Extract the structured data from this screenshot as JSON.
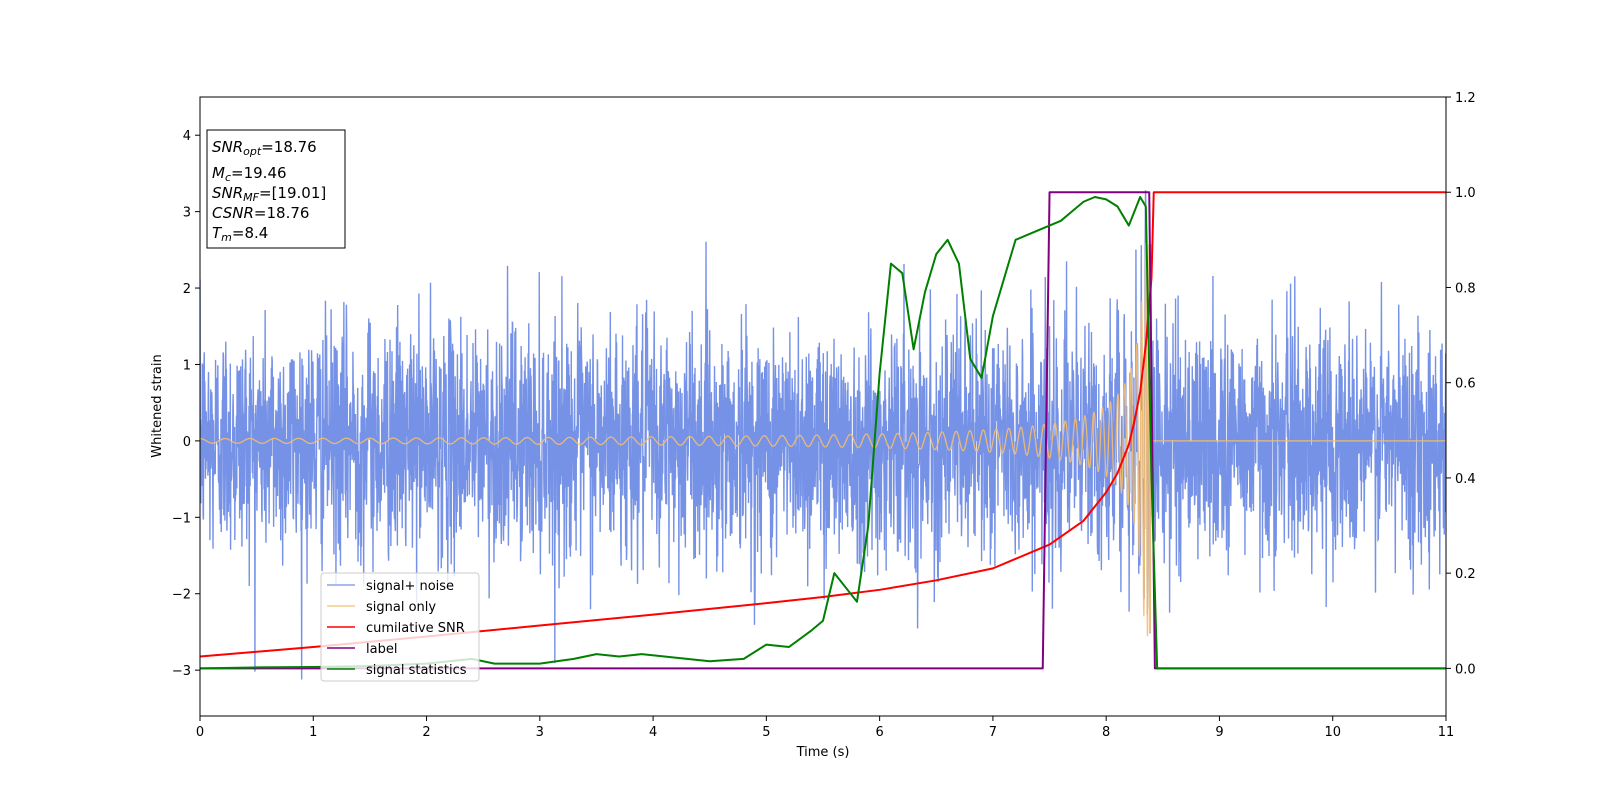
{
  "chart_data": {
    "type": "line",
    "xlabel": "Time (s)",
    "ylabel": "Whitened strain",
    "xlim": [
      0,
      11
    ],
    "ylim_left": [
      -3.6,
      4.5
    ],
    "ylim_right": [
      -0.1,
      1.2
    ],
    "x_ticks": [
      "0",
      "1",
      "2",
      "3",
      "4",
      "5",
      "6",
      "7",
      "8",
      "9",
      "10",
      "11"
    ],
    "y_ticks_left": [
      "−3",
      "−2",
      "−1",
      "0",
      "1",
      "2",
      "3",
      "4"
    ],
    "y_ticks_right": [
      "0.0",
      "0.2",
      "0.4",
      "0.6",
      "0.8",
      "1.0",
      "1.2"
    ],
    "grid": false,
    "legend_position": "lower-left",
    "annotation": {
      "lines": [
        {
          "main": "SNR",
          "sub": "opt",
          "rest": "=18.76"
        },
        {
          "main": "M",
          "sub": "c",
          "rest": "=19.46"
        },
        {
          "main": "SNR",
          "sub": "MF",
          "rest": "=[19.01]"
        },
        {
          "main": "CSNR",
          "sub": "",
          "rest": "=18.76"
        },
        {
          "main": "T",
          "sub": "m",
          "rest": "=8.4"
        }
      ]
    },
    "series": [
      {
        "name": "signal+ noise",
        "axis": "left",
        "color": "#6F8CE5",
        "description_of_values": "noise envelope approx ±1.5 with spikes to ±3",
        "noise_sigma": 0.75
      },
      {
        "name": "signal only",
        "axis": "left",
        "color": "#F5BE6E",
        "chirp_merger_time": 8.4,
        "amplitude_at_start": 0.03,
        "amplitude_at_merger": 2.6
      },
      {
        "name": "cumilative SNR",
        "axis": "right",
        "color": "#FF0000",
        "x": [
          0,
          1,
          2,
          3,
          4,
          5,
          5.5,
          6,
          6.5,
          7,
          7.5,
          7.8,
          8.0,
          8.1,
          8.2,
          8.25,
          8.3,
          8.35,
          8.4,
          8.42,
          11
        ],
        "y": [
          0.025,
          0.045,
          0.067,
          0.09,
          0.113,
          0.137,
          0.15,
          0.165,
          0.185,
          0.21,
          0.26,
          0.31,
          0.37,
          0.41,
          0.47,
          0.52,
          0.58,
          0.68,
          0.82,
          1.0,
          1.0
        ]
      },
      {
        "name": "label",
        "axis": "right",
        "color": "#800080",
        "x": [
          0,
          7.44,
          7.5,
          8.38,
          8.43,
          11
        ],
        "y": [
          0.0,
          0.0,
          1.0,
          1.0,
          0.0,
          0.0
        ]
      },
      {
        "name": "signal statistics",
        "axis": "right",
        "color": "#008000",
        "x": [
          0,
          0.5,
          1,
          1.5,
          2,
          2.4,
          2.6,
          3,
          3.3,
          3.5,
          3.7,
          3.9,
          4.1,
          4.3,
          4.5,
          4.8,
          5.0,
          5.2,
          5.4,
          5.5,
          5.6,
          5.7,
          5.8,
          5.9,
          6.0,
          6.1,
          6.2,
          6.3,
          6.4,
          6.5,
          6.6,
          6.7,
          6.8,
          6.9,
          7.0,
          7.1,
          7.2,
          7.3,
          7.4,
          7.5,
          7.6,
          7.7,
          7.8,
          7.9,
          8.0,
          8.1,
          8.2,
          8.3,
          8.35,
          8.4,
          8.45,
          11
        ],
        "y": [
          0.0,
          0.002,
          0.003,
          0.005,
          0.01,
          0.02,
          0.01,
          0.01,
          0.02,
          0.03,
          0.025,
          0.03,
          0.025,
          0.02,
          0.015,
          0.02,
          0.05,
          0.045,
          0.08,
          0.1,
          0.2,
          0.17,
          0.14,
          0.3,
          0.62,
          0.85,
          0.83,
          0.67,
          0.79,
          0.87,
          0.9,
          0.85,
          0.65,
          0.61,
          0.74,
          0.82,
          0.9,
          0.91,
          0.92,
          0.93,
          0.94,
          0.96,
          0.98,
          0.99,
          0.985,
          0.97,
          0.93,
          0.99,
          0.97,
          0.4,
          0.0,
          0.0
        ]
      }
    ]
  }
}
